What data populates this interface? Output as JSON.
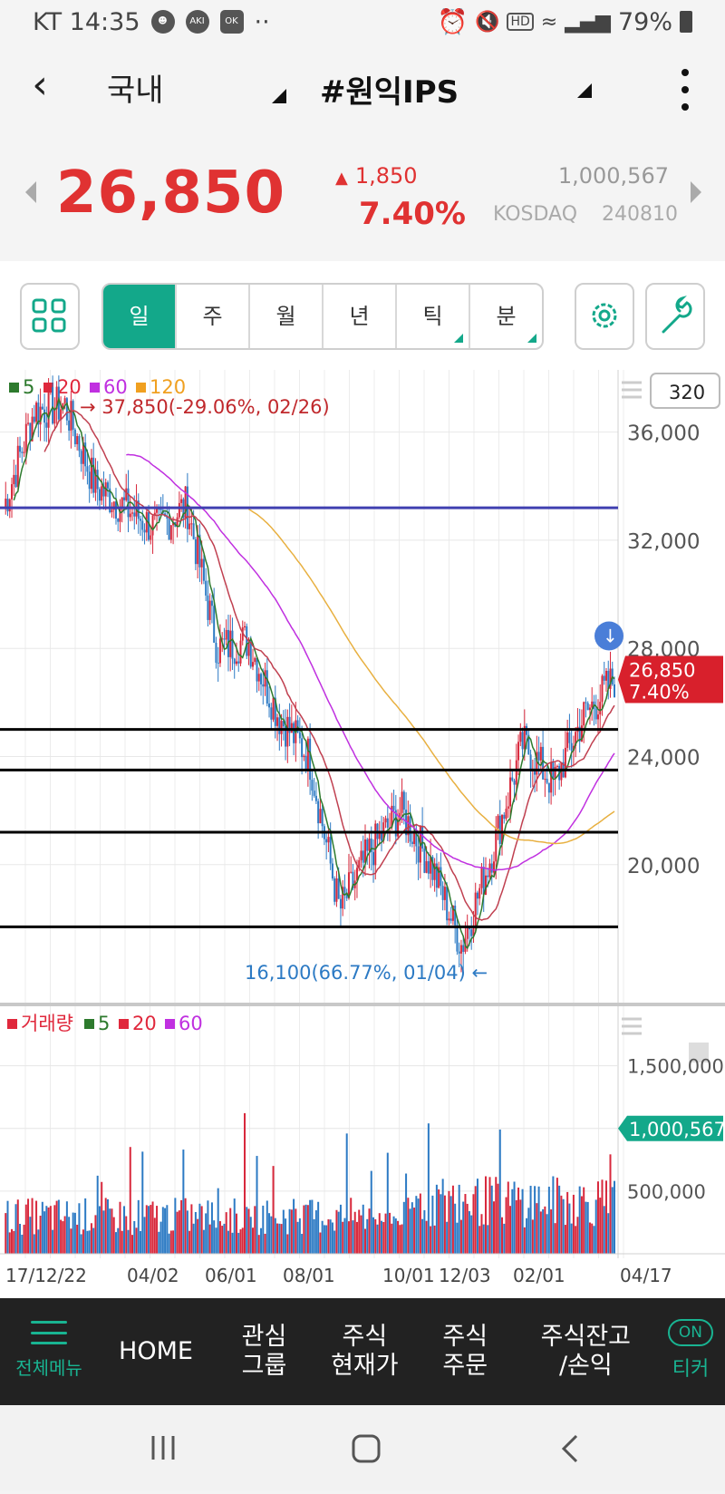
{
  "status_bar": {
    "carrier_time": "KT 14:35",
    "icons": [
      "person-icon",
      "aki-icon",
      "ok-icon",
      "more-dots-icon",
      "alarm-icon",
      "mute-icon",
      "hd-icon",
      "wifi-icon",
      "signal-icon",
      "battery-icon"
    ],
    "battery": "79%"
  },
  "header": {
    "market": "국내",
    "stock_name": "#원익IPS"
  },
  "quote": {
    "price": "26,850",
    "change": "1,850",
    "change_pct": "7.40%",
    "volume": "1,000,567",
    "market": "KOSDAQ",
    "code": "240810"
  },
  "toolbar": {
    "periods": [
      "일",
      "주",
      "월",
      "년",
      "틱",
      "분"
    ],
    "active_period": "일"
  },
  "chart": {
    "count": "320",
    "legend": [
      {
        "label": "5",
        "color": "#2d7a2d"
      },
      {
        "label": "20",
        "color": "#e0283c"
      },
      {
        "label": "60",
        "color": "#c030e0"
      },
      {
        "label": "120",
        "color": "#f0a020"
      }
    ],
    "high_annotation": "37,850(-29.06%, 02/26)",
    "low_annotation": "16,100(66.77%, 01/04)",
    "current_price": "26,850",
    "current_pct": "7.40%",
    "price_axis": [
      "36,000",
      "32,000",
      "28,000",
      "24,000",
      "20,000"
    ],
    "volume_legend": [
      {
        "label": "거래량",
        "color": "#e0283c"
      },
      {
        "label": "5",
        "color": "#2d7a2d"
      },
      {
        "label": "20",
        "color": "#e0283c"
      },
      {
        "label": "60",
        "color": "#c030e0"
      }
    ],
    "volume_axis": [
      "1,500,000",
      "500,000"
    ],
    "current_volume": "1,000,567",
    "date_axis": [
      "17/12/22",
      "04/02",
      "06/01",
      "08/01",
      "10/01",
      "12/03",
      "02/01",
      "04/17"
    ],
    "colors": {
      "up": "#d8283c",
      "down": "#2c7ac4",
      "accent": "#13a88a",
      "hline_blue": "#4040b0"
    }
  },
  "chart_data": {
    "type": "candlestick",
    "y_range": [
      15500,
      38300
    ],
    "horizontal_lines": [
      33200,
      25000,
      23500,
      21200,
      17700
    ],
    "price_series": [
      [
        "17/12/22",
        33200
      ],
      [
        "01/22",
        36800
      ],
      [
        "02/26",
        37000
      ],
      [
        "03/15",
        34000
      ],
      [
        "04/02",
        33200
      ],
      [
        "05/01",
        32400
      ],
      [
        "06/01",
        33300
      ],
      [
        "06/20",
        28000
      ],
      [
        "07/20",
        28300
      ],
      [
        "08/01",
        25500
      ],
      [
        "09/01",
        24000
      ],
      [
        "10/01",
        18300
      ],
      [
        "11/01",
        20500
      ],
      [
        "11/20",
        22000
      ],
      [
        "12/03",
        20000
      ],
      [
        "01/04",
        17000
      ],
      [
        "01/20",
        20500
      ],
      [
        "02/01",
        24500
      ],
      [
        "03/01",
        23000
      ],
      [
        "03/20",
        25500
      ],
      [
        "04/17",
        26850
      ]
    ],
    "volume_y_range": [
      0,
      1700000
    ]
  },
  "bottom_nav": {
    "menu": "전체메뉴",
    "home": "HOME",
    "watch_1": "관심",
    "watch_2": "그룹",
    "price_1": "주식",
    "price_2": "현재가",
    "order_1": "주식",
    "order_2": "주문",
    "balance_1": "주식잔고",
    "balance_2": "/손익",
    "on": "ON",
    "ticker": "티커"
  }
}
